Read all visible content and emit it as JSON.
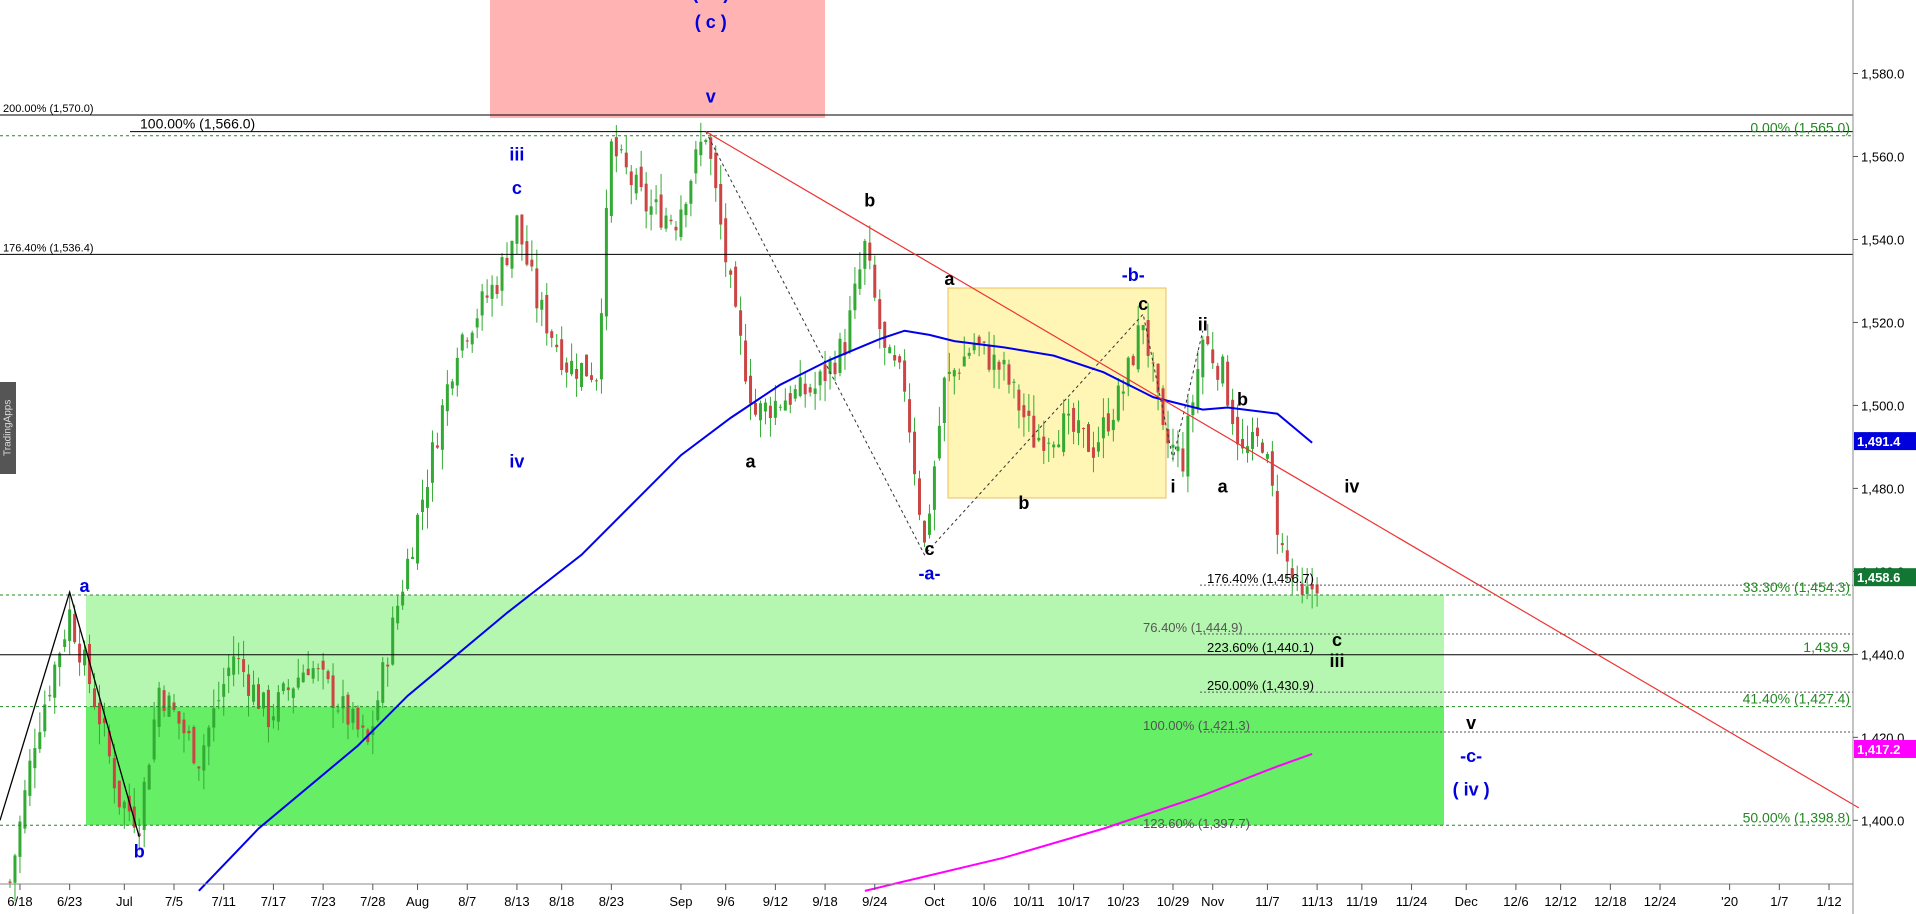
{
  "watermark": "TradingApps",
  "colors": {
    "candle": "#33aa33",
    "ma_blue": "#0000ee",
    "ma_magenta": "#ff00ff",
    "trend_red": "#ee3333",
    "fib_green": "#228822",
    "wave_blue": "#0000dd",
    "zone_red": "#ffb3b3",
    "zone_light_green": "#b5f7b0",
    "zone_green": "#66ee66",
    "zone_yellow": "#fff5b5"
  },
  "chart_data": {
    "type": "candlestick",
    "title": "",
    "xlabel": "",
    "ylabel": "",
    "ylim": [
      1383,
      1602
    ],
    "y_ticks": [
      1400,
      1420,
      1440,
      1460,
      1480,
      1500,
      1520,
      1540,
      1560,
      1580
    ],
    "y_tick_labels": [
      "1,400.0",
      "1,420.0",
      "1,440.0",
      "1,460.0",
      "1,480.0",
      "1,500.0",
      "1,520.0",
      "1,540.0",
      "1,560.0",
      "1,580.0"
    ],
    "x_tick_labels": [
      "6/18",
      "6/23",
      "Jul",
      "7/5",
      "7/11",
      "7/17",
      "7/23",
      "7/28",
      "Aug",
      "8/7",
      "8/13",
      "8/18",
      "8/23",
      "Sep",
      "9/6",
      "9/12",
      "9/18",
      "9/24",
      "Oct",
      "10/6",
      "10/11",
      "10/17",
      "10/23",
      "10/29",
      "Nov",
      "11/7",
      "11/13",
      "11/19",
      "11/24",
      "Dec",
      "12/6",
      "12/12",
      "12/18",
      "12/24",
      "'20",
      "1/7",
      "1/12"
    ],
    "x_tick_index": [
      2,
      12,
      23,
      33,
      43,
      53,
      63,
      73,
      82,
      92,
      102,
      111,
      121,
      135,
      144,
      154,
      164,
      174,
      186,
      196,
      205,
      214,
      224,
      234,
      242,
      253,
      263,
      272,
      282,
      293,
      303,
      312,
      322,
      332,
      346,
      356,
      366
    ],
    "ma_blue": [
      [
        38,
        1383.0
      ],
      [
        50,
        1398.0
      ],
      [
        70,
        1418.0
      ],
      [
        80,
        1430.0
      ],
      [
        100,
        1450.0
      ],
      [
        115,
        1464.0
      ],
      [
        125,
        1476.0
      ],
      [
        135,
        1488.0
      ],
      [
        145,
        1497.0
      ],
      [
        155,
        1505.0
      ],
      [
        165,
        1511.0
      ],
      [
        175,
        1516.0
      ],
      [
        180,
        1518.0
      ],
      [
        185,
        1517.0
      ],
      [
        190,
        1515.5
      ],
      [
        200,
        1514.0
      ],
      [
        210,
        1512.0
      ],
      [
        220,
        1508.0
      ],
      [
        230,
        1502.0
      ],
      [
        240,
        1499.0
      ],
      [
        245,
        1499.5
      ],
      [
        255,
        1498.0
      ],
      [
        262,
        1491.0
      ]
    ],
    "ma_magenta": [
      [
        172,
        1383.0
      ],
      [
        200,
        1391.0
      ],
      [
        220,
        1398.0
      ],
      [
        240,
        1406.0
      ],
      [
        255,
        1413.0
      ],
      [
        262,
        1416.0
      ]
    ],
    "price_markers": [
      {
        "label": "1,491.4",
        "value": 1491.4,
        "color": "#0000dd"
      },
      {
        "label": "1,458.6",
        "value": 1458.6,
        "color": "#117733"
      },
      {
        "label": "1,417.2",
        "value": 1417.2,
        "color": "#ff00ff"
      }
    ],
    "fib_right": [
      {
        "label": "0.00% (1,565.0)",
        "value": 1565.0
      },
      {
        "label": "33.30% (1,454.3)",
        "value": 1454.3
      },
      {
        "label": "1,439.9",
        "value": 1439.9
      },
      {
        "label": "41.40% (1,427.4)",
        "value": 1427.4
      },
      {
        "label": "50.00% (1,398.8)",
        "value": 1398.8
      }
    ],
    "fib_left": [
      {
        "label": "200.00% (1,570.0)",
        "value": 1570.0
      },
      {
        "label": "100.00% (1,566.0)",
        "value": 1566.0
      },
      {
        "label": "176.40% (1,536.4)",
        "value": 1536.4
      }
    ],
    "fib_mid": [
      {
        "label": "176.40% (1,456.7)",
        "value": 1456.7
      },
      {
        "label": "76.40% (1,444.9)",
        "value": 1444.9
      },
      {
        "label": "223.60% (1,440.1)",
        "value": 1440.1
      },
      {
        "label": "250.00% (1,430.9)",
        "value": 1430.9
      },
      {
        "label": "100.00% (1,421.3)",
        "value": 1421.3
      },
      {
        "label": "123.60% (1,397.7)",
        "value": 1397.7
      }
    ],
    "trendline": [
      [
        140,
        1566.0
      ],
      [
        372,
        1403.0
      ]
    ],
    "wave_labels": [
      {
        "t": "a",
        "x": 15,
        "y": 1455,
        "c": "blue"
      },
      {
        "t": "b",
        "x": 26,
        "y": 1391,
        "c": "blue"
      },
      {
        "t": "iii",
        "x": 102,
        "y": 1559,
        "c": "blue"
      },
      {
        "t": "c",
        "x": 102,
        "y": 1551,
        "c": "blue"
      },
      {
        "t": "iv",
        "x": 102,
        "y": 1485,
        "c": "blue"
      },
      {
        "t": "( iii )",
        "x": 141,
        "y": 1598,
        "c": "blue"
      },
      {
        "t": "( c )",
        "x": 141,
        "y": 1591,
        "c": "blue"
      },
      {
        "t": "v",
        "x": 141,
        "y": 1573,
        "c": "blue"
      },
      {
        "t": "a",
        "x": 149,
        "y": 1485,
        "c": "black"
      },
      {
        "t": "b",
        "x": 173,
        "y": 1548,
        "c": "black"
      },
      {
        "t": "a",
        "x": 189,
        "y": 1529,
        "c": "black"
      },
      {
        "t": "c",
        "x": 185,
        "y": 1464,
        "c": "black"
      },
      {
        "t": "-a-",
        "x": 185,
        "y": 1458,
        "c": "blue"
      },
      {
        "t": "b",
        "x": 204,
        "y": 1475,
        "c": "black"
      },
      {
        "t": "-b-",
        "x": 226,
        "y": 1530,
        "c": "blue"
      },
      {
        "t": "c",
        "x": 228,
        "y": 1523,
        "c": "black"
      },
      {
        "t": "ii",
        "x": 240,
        "y": 1518,
        "c": "black"
      },
      {
        "t": "i",
        "x": 234,
        "y": 1479,
        "c": "black"
      },
      {
        "t": "b",
        "x": 248,
        "y": 1500,
        "c": "black"
      },
      {
        "t": "a",
        "x": 244,
        "y": 1479,
        "c": "black"
      },
      {
        "t": "iv",
        "x": 270,
        "y": 1479,
        "c": "black"
      },
      {
        "t": "c",
        "x": 267,
        "y": 1442,
        "c": "black"
      },
      {
        "t": "iii",
        "x": 267,
        "y": 1437,
        "c": "black"
      },
      {
        "t": "v",
        "x": 294,
        "y": 1422,
        "c": "black"
      },
      {
        "t": "-c-",
        "x": 294,
        "y": 1414,
        "c": "blue"
      },
      {
        "t": "( iv )",
        "x": 294,
        "y": 1406,
        "c": "blue"
      }
    ]
  }
}
